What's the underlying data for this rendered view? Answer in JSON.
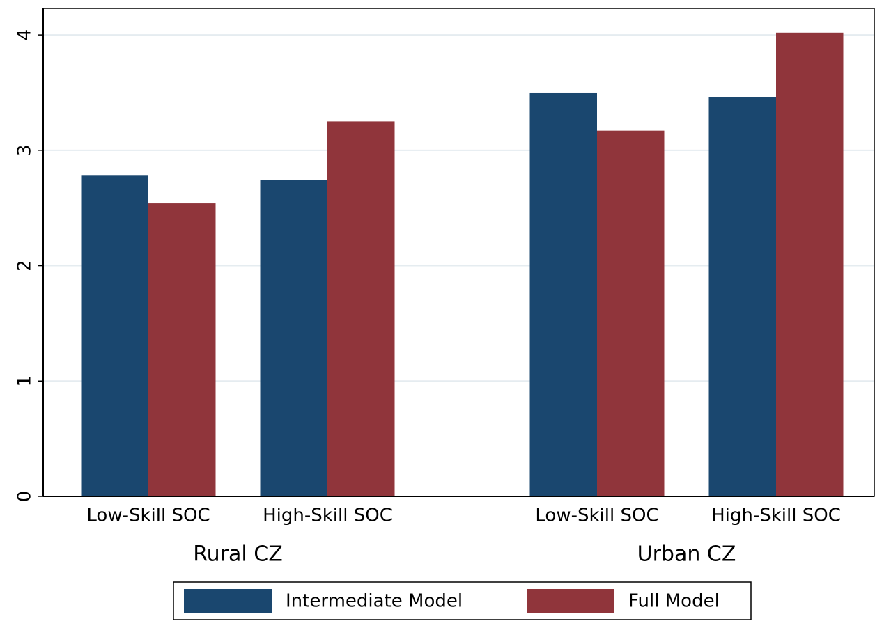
{
  "chart_data": {
    "type": "bar",
    "categories": [
      "Low-Skill SOC",
      "High-Skill SOC",
      "Low-Skill SOC",
      "High-Skill SOC"
    ],
    "groups": [
      "Rural CZ",
      "Urban CZ"
    ],
    "series": [
      {
        "name": "Intermediate Model",
        "color": "#1a476f",
        "values": [
          2.78,
          2.74,
          3.5,
          3.46
        ]
      },
      {
        "name": "Full Model",
        "color": "#90353b",
        "values": [
          2.54,
          3.25,
          3.17,
          4.02
        ]
      }
    ],
    "ylim": [
      0,
      4.23
    ],
    "yticks": [
      0,
      1,
      2,
      3,
      4
    ],
    "grid": true
  }
}
